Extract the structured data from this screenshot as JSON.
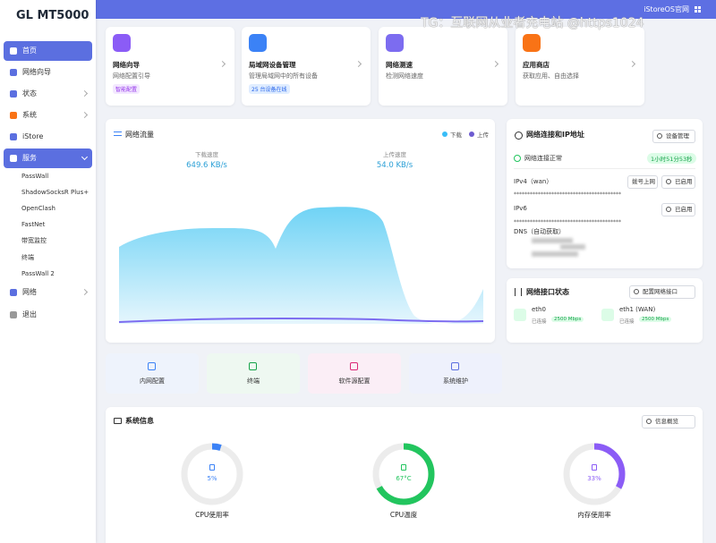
{
  "sidebar": {
    "logo": "GL MT5000",
    "menu": [
      {
        "label": "首页"
      },
      {
        "label": "网络向导"
      },
      {
        "label": "状态"
      },
      {
        "label": "系统"
      },
      {
        "label": "iStore"
      },
      {
        "label": "服务"
      },
      {
        "label": "网络"
      },
      {
        "label": "退出"
      }
    ],
    "submenu": [
      "PassWall",
      "ShadowSocksR Plus+",
      "OpenClash",
      "FastNet",
      "带宽监控",
      "终端",
      "PassWall 2"
    ]
  },
  "topbar": {
    "link": "iStoreOS官网",
    "watermark": "TG：互联网从业者充电站 @https1024"
  },
  "cards": [
    {
      "title": "网络向导",
      "subtitle": "网络配置引导",
      "tag": "智能配置"
    },
    {
      "title": "局域网设备管理",
      "subtitle": "管理局域网中的所有设备",
      "tag": "25 台设备在线"
    },
    {
      "title": "网络测速",
      "subtitle": "检测网络速度"
    },
    {
      "title": "应用商店",
      "subtitle": "获取应用、自由选择"
    }
  ],
  "traffic": {
    "title": "网络流量",
    "legend": [
      "下载",
      "上传"
    ],
    "download_label": "下载速度",
    "download": "649.6 KB/s",
    "upload_label": "上传速度",
    "upload": "54.0 KB/s"
  },
  "connection": {
    "title": "网络连接和IP地址",
    "button": "设备管理",
    "status": "网络连接正常",
    "uptime": "1小时51分53秒",
    "ipv4": "IPv4（wan）",
    "ipv4_mode": "拨号上网",
    "ipv4_state": "已启用",
    "ipv4_address": "****************************************",
    "ipv6": "IPv6",
    "ipv6_state": "已启用",
    "ipv6_address": "****************************************",
    "dns": "DNS（自动获取）"
  },
  "interfaces": {
    "title": "网络接口状态",
    "button": "配置网络接口",
    "ports": [
      {
        "name": "eth0",
        "state": "已连接",
        "speed": "2500 Mbps"
      },
      {
        "name": "eth1 (WAN)",
        "state": "已连接",
        "speed": "2500 Mbps"
      }
    ]
  },
  "shortcuts": [
    "内网配置",
    "终端",
    "软件源配置",
    "系统维护"
  ],
  "system": {
    "title": "系统信息",
    "button": "信息概览",
    "gauges": [
      {
        "label": "CPU使用率",
        "value": 5,
        "value_label": "5%"
      },
      {
        "label": "CPU温度",
        "value": 67,
        "value_label": "67°C"
      },
      {
        "label": "内存使用率",
        "value": 33,
        "value_label": "33%"
      }
    ]
  }
}
